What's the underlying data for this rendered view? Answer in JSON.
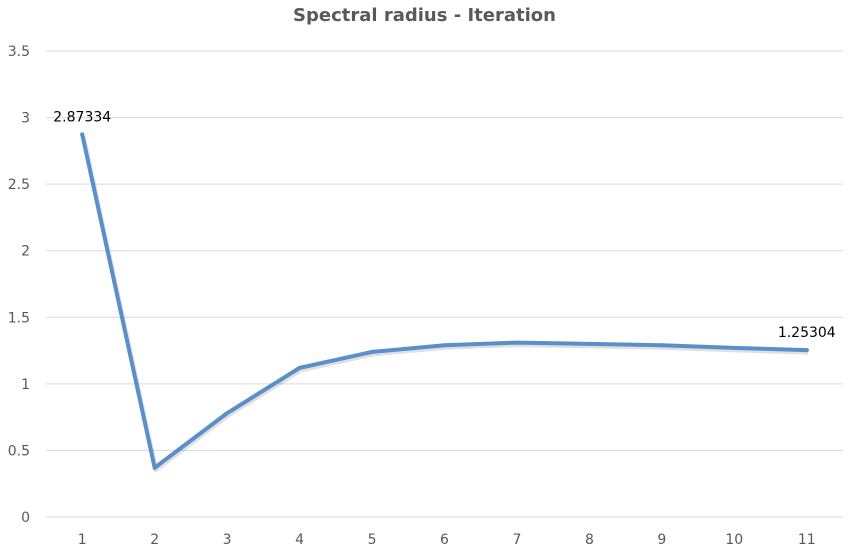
{
  "chart_data": {
    "type": "line",
    "title": "Spectral radius - Iteration",
    "xlabel": "",
    "ylabel": "",
    "categories": [
      "1",
      "2",
      "3",
      "4",
      "5",
      "6",
      "7",
      "8",
      "9",
      "10",
      "11"
    ],
    "series": [
      {
        "values": [
          2.87334,
          0.37,
          0.78,
          1.12,
          1.24,
          1.29,
          1.31,
          1.3,
          1.29,
          1.27,
          1.25304
        ],
        "color": "#5b8fc9"
      }
    ],
    "ylim": [
      0,
      3.5
    ],
    "yticks": [
      "0",
      "0.5",
      "1",
      "1.5",
      "2",
      "2.5",
      "3",
      "3.5"
    ],
    "data_labels": [
      {
        "index": 0,
        "text": "2.87334"
      },
      {
        "index": 10,
        "text": "1.25304"
      }
    ],
    "grid": "horizontal",
    "legend": "none",
    "gridline_color": "#d9d9d9"
  }
}
